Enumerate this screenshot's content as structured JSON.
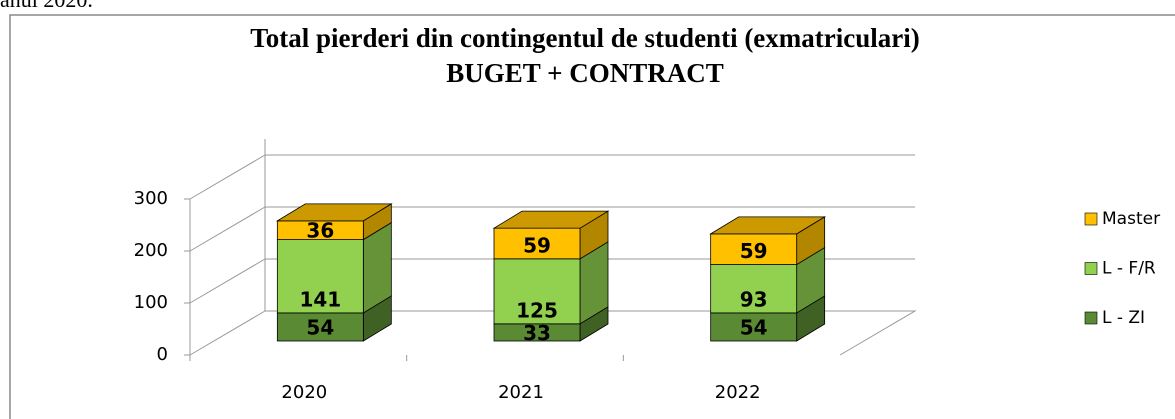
{
  "text": "anul 2020.",
  "chart_data": {
    "type": "bar3d_stacked",
    "title": [
      "Total pierderi din contingentul de studenti (exmatriculari)",
      "BUGET + CONTRACT"
    ],
    "categories": [
      "2020",
      "2021",
      "2022"
    ],
    "series": [
      {
        "name": "L - ZI",
        "color": "#5a8a34",
        "values": [
          54,
          33,
          54
        ]
      },
      {
        "name": "L - F/R",
        "color": "#92d050",
        "values": [
          141,
          125,
          93
        ]
      },
      {
        "name": "Master",
        "color": "#ffc000",
        "values": [
          36,
          59,
          59
        ]
      }
    ],
    "ylim": [
      0,
      300
    ],
    "yticks": [
      0,
      100,
      200,
      300
    ],
    "grid": true,
    "legend": "right"
  }
}
